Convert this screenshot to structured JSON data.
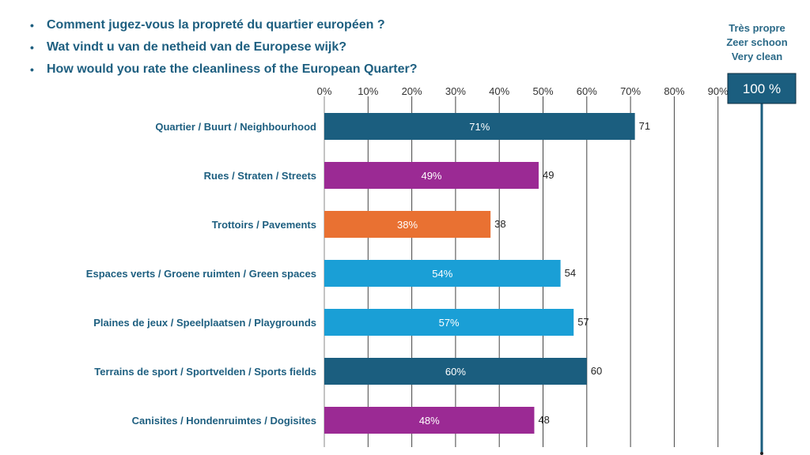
{
  "questions": [
    "Comment jugez-vous la propreté du quartier européen ?",
    "Wat vindt u van de netheid van de Europese wijk?",
    "How would you rate the cleanliness of the European Quarter?"
  ],
  "scale_top_label": [
    "Très propre",
    "Zeer schoon",
    "Very clean"
  ],
  "chart_data": {
    "type": "bar",
    "orientation": "horizontal",
    "title": "Comment jugez-vous la propreté du quartier européen ? / Wat vindt u van de netheid van de Europese wijk? / How would you rate the cleanliness of the European Quarter?",
    "xlabel": "",
    "ylabel": "",
    "xlim": [
      0,
      100
    ],
    "x_ticks": [
      "0%",
      "10%",
      "20%",
      "30%",
      "40%",
      "50%",
      "60%",
      "70%",
      "80%",
      "90%"
    ],
    "grid": true,
    "legend": "none",
    "reference_marker": {
      "value": 100,
      "label": "100 %",
      "color": "#1b5e7f"
    },
    "categories": [
      "Quartier / Buurt / Neighbourhood",
      "Rues / Straten / Streets",
      "Trottoirs / Pavements",
      "Espaces verts / Groene ruimten / Green spaces",
      "Plaines de jeux / Speelplaatsen / Playgrounds",
      "Terrains de sport / Sportvelden / Sports fields",
      "Canisites / Hondenruimtes / Dogisites"
    ],
    "values": [
      71,
      49,
      38,
      54,
      57,
      60,
      48
    ],
    "bar_labels": [
      "71%",
      "49%",
      "38%",
      "54%",
      "57%",
      "60%",
      "48%"
    ],
    "end_labels": [
      "71",
      "49",
      "38",
      "54",
      "57",
      "60",
      "48"
    ],
    "colors": [
      "#1b5e7f",
      "#9b2a94",
      "#e97132",
      "#1a9fd6",
      "#1a9fd6",
      "#1b5e7f",
      "#9b2a94"
    ]
  }
}
